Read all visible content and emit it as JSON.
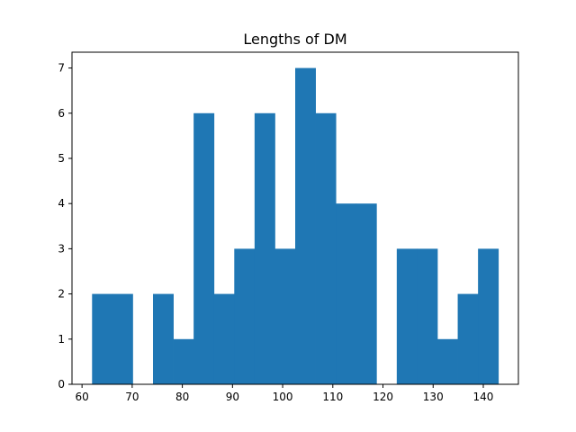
{
  "chart_data": {
    "type": "bar",
    "title": "Lengths of DM",
    "xlabel": "",
    "ylabel": "",
    "bin_edges": [
      62.0,
      66.05,
      70.1,
      74.15,
      78.2,
      82.25,
      86.3,
      90.35,
      94.4,
      98.45,
      102.5,
      106.55,
      110.6,
      114.65,
      118.7,
      122.75,
      126.8,
      130.85,
      134.9,
      138.95,
      143.0
    ],
    "counts": [
      2,
      2,
      0,
      2,
      1,
      6,
      2,
      3,
      6,
      3,
      7,
      6,
      4,
      4,
      0,
      3,
      3,
      1,
      2,
      3
    ],
    "xlim": [
      58,
      147
    ],
    "ylim": [
      0,
      7.35
    ],
    "xticks": [
      60,
      70,
      80,
      90,
      100,
      110,
      120,
      130,
      140
    ],
    "yticks": [
      0,
      1,
      2,
      3,
      4,
      5,
      6,
      7
    ],
    "grid": false,
    "bar_color": "#1f77b4"
  }
}
